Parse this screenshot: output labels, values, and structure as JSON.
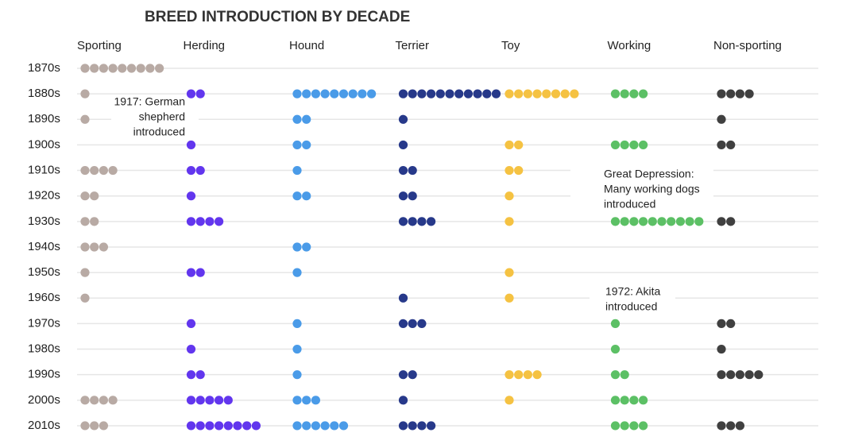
{
  "chart_data": {
    "type": "dot",
    "title": "BREED INTRODUCTION BY DECADE",
    "categories": [
      "1870s",
      "1880s",
      "1890s",
      "1900s",
      "1910s",
      "1920s",
      "1930s",
      "1940s",
      "1950s",
      "1960s",
      "1970s",
      "1980s",
      "1990s",
      "2000s",
      "2010s"
    ],
    "series": [
      {
        "name": "Sporting",
        "color": "#b8aaa4",
        "values": [
          9,
          1,
          1,
          0,
          4,
          2,
          2,
          3,
          1,
          1,
          0,
          0,
          0,
          4,
          3
        ]
      },
      {
        "name": "Herding",
        "color": "#6236ee",
        "values": [
          0,
          2,
          0,
          1,
          2,
          1,
          4,
          0,
          2,
          0,
          1,
          1,
          2,
          5,
          8
        ]
      },
      {
        "name": "Hound",
        "color": "#4a9be8",
        "values": [
          0,
          9,
          2,
          2,
          1,
          2,
          0,
          2,
          1,
          0,
          1,
          1,
          1,
          3,
          6
        ]
      },
      {
        "name": "Terrier",
        "color": "#27398a",
        "values": [
          0,
          11,
          1,
          1,
          2,
          2,
          4,
          0,
          0,
          1,
          3,
          0,
          2,
          1,
          4
        ]
      },
      {
        "name": "Toy",
        "color": "#f5c242",
        "values": [
          0,
          8,
          0,
          2,
          2,
          1,
          1,
          0,
          1,
          1,
          0,
          0,
          4,
          1,
          0
        ]
      },
      {
        "name": "Working",
        "color": "#5cc065",
        "values": [
          0,
          4,
          0,
          4,
          0,
          0,
          10,
          0,
          0,
          0,
          1,
          1,
          2,
          4,
          4
        ]
      },
      {
        "name": "Non-sporting",
        "color": "#404040",
        "values": [
          0,
          4,
          1,
          2,
          0,
          0,
          2,
          0,
          0,
          0,
          2,
          1,
          5,
          0,
          3
        ]
      }
    ],
    "annotations": [
      {
        "series": "Herding",
        "lines": [
          "1917: German",
          "shepherd",
          "introduced"
        ]
      },
      {
        "series": "Working",
        "lines": [
          "Great Depression:",
          "Many working dogs",
          "introduced"
        ]
      },
      {
        "series": "Working",
        "lines": [
          "1972: Akita",
          "introduced"
        ]
      }
    ]
  }
}
